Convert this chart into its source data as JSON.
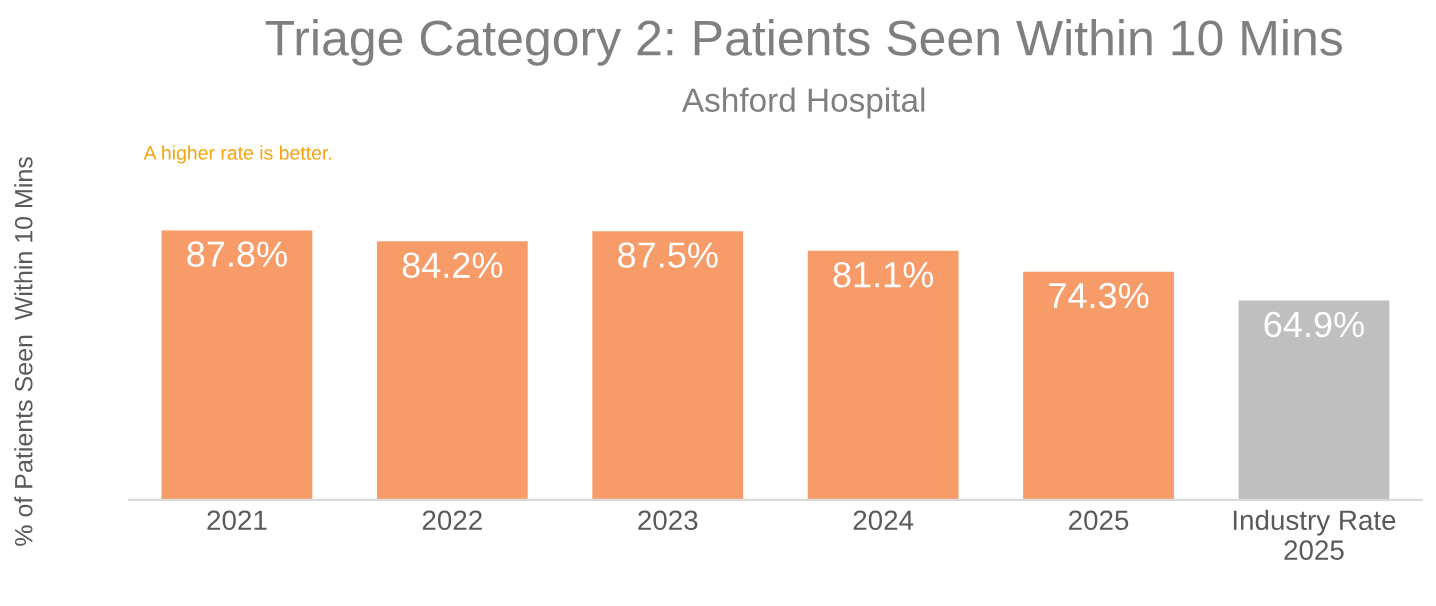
{
  "chart_data": {
    "type": "bar",
    "title": "Triage Category 2: Patients Seen Within 10 Mins",
    "subtitle": "Ashford Hospital",
    "ylabel": "% of Patients Seen  Within 10 Mins",
    "annotations": [
      "A higher rate is better."
    ],
    "categories": [
      "2021",
      "2022",
      "2023",
      "2024",
      "2025",
      "Industry Rate\n2025"
    ],
    "values": [
      87.8,
      84.2,
      87.5,
      81.1,
      74.3,
      64.9
    ],
    "colors": [
      "#f79c69",
      "#f79c69",
      "#f79c69",
      "#f79c69",
      "#f79c69",
      "#bfbfbf"
    ],
    "value_labels": [
      "87.8%",
      "84.2%",
      "87.5%",
      "81.1%",
      "74.3%",
      "64.9%"
    ],
    "grid": false,
    "legend": false
  }
}
